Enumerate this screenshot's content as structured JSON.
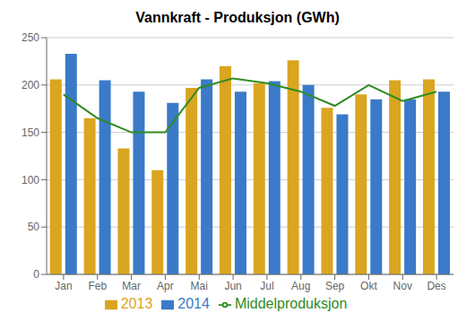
{
  "chart_data": {
    "type": "bar",
    "title": "Vannkraft - Produksjon (GWh)",
    "categories": [
      "Jan",
      "Feb",
      "Mar",
      "Apr",
      "Mai",
      "Jun",
      "Jul",
      "Aug",
      "Sep",
      "Okt",
      "Nov",
      "Des"
    ],
    "series": [
      {
        "name": "2013",
        "type": "bar",
        "color": "#DAA520",
        "values": [
          206,
          165,
          133,
          110,
          197,
          220,
          202,
          226,
          176,
          190,
          205,
          206
        ]
      },
      {
        "name": "2014",
        "type": "bar",
        "color": "#3A7AC8",
        "values": [
          233,
          205,
          193,
          181,
          206,
          193,
          204,
          200,
          169,
          185,
          185,
          193
        ]
      },
      {
        "name": "Middelproduksjon",
        "type": "line",
        "color": "#2E8B22",
        "values": [
          190,
          165,
          150,
          150,
          197,
          207,
          202,
          193,
          178,
          200,
          183,
          193
        ]
      }
    ],
    "ylim": [
      0,
      250
    ],
    "yticks": [
      0,
      50,
      100,
      150,
      200,
      250
    ],
    "grid": true,
    "legend": "bottom"
  }
}
